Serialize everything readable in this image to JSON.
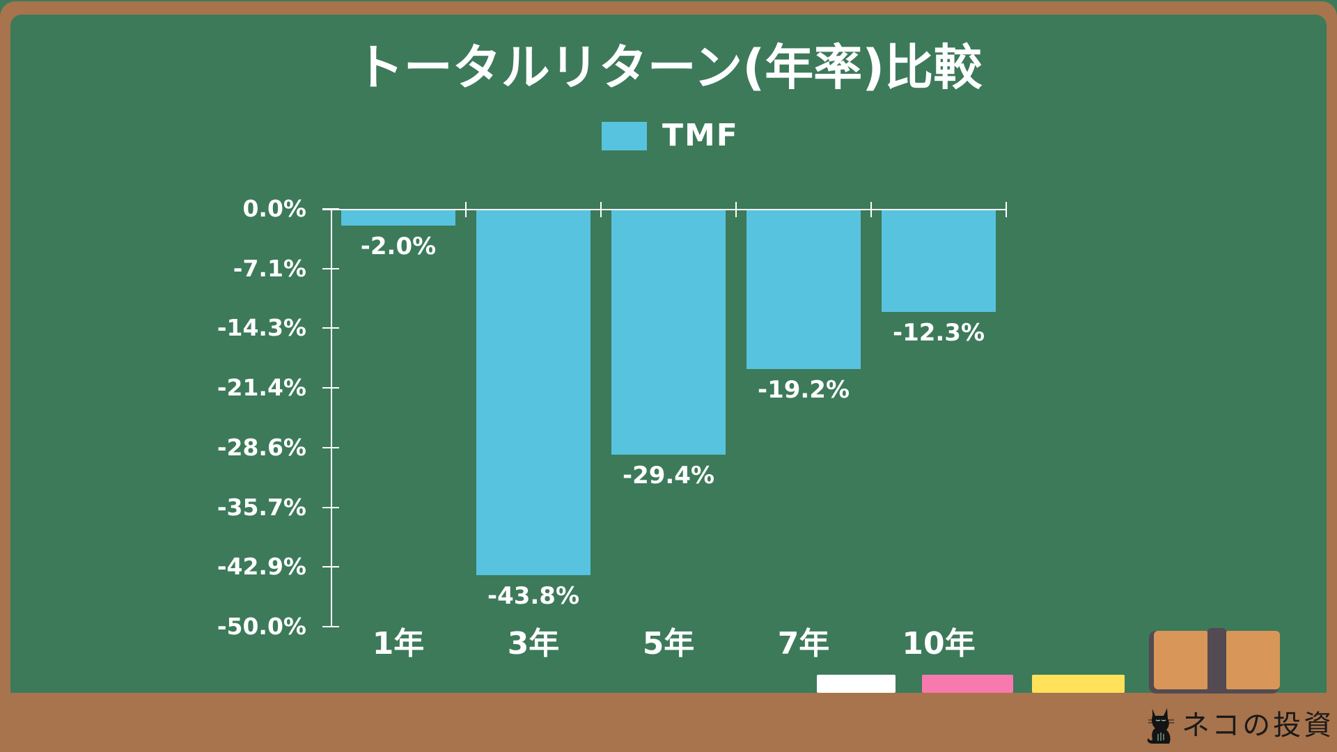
{
  "chart_data": {
    "type": "bar",
    "title": "トータルリターン(年率)比較",
    "legend": [
      "TMF"
    ],
    "legend_position": "top",
    "categories": [
      "1年",
      "3年",
      "5年",
      "7年",
      "10年"
    ],
    "series": [
      {
        "name": "TMF",
        "values": [
          -2.0,
          -43.8,
          -29.4,
          -19.2,
          -12.3
        ],
        "color": "#58C3DF"
      }
    ],
    "data_labels": [
      "-2.0%",
      "-43.8%",
      "-29.4%",
      "-19.2%",
      "-12.3%"
    ],
    "xlabel": "",
    "ylabel": "",
    "ylim": [
      -50.0,
      0.0
    ],
    "yticks": [
      "0.0%",
      "-7.1%",
      "-14.3%",
      "-21.4%",
      "-28.6%",
      "-35.7%",
      "-42.9%",
      "-50.0%"
    ],
    "grid": false
  },
  "title": "トータルリターン(年率)比較",
  "legend": {
    "label": "TMF",
    "color": "#58C3DF"
  },
  "colors": {
    "board": "#3C7A5A",
    "frame": "#A8744D",
    "bar": "#58C3DF",
    "text": "#FFFFFF",
    "chalk_white": "#FFFFFF",
    "chalk_pink": "#F879AE",
    "chalk_yellow": "#FFE15A",
    "eraser": "#D89758",
    "eraser_band": "#534A52"
  },
  "logo": {
    "text": "ネコの投資",
    "icon": "cat-icon"
  }
}
